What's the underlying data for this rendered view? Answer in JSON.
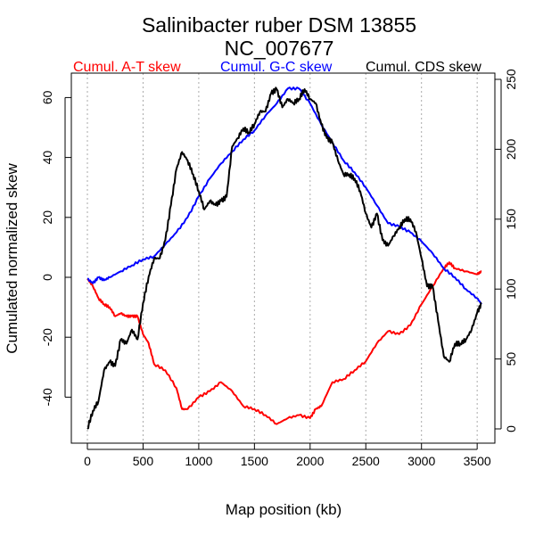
{
  "chart_data": {
    "type": "line",
    "title": "Salinibacter ruber DSM 13855",
    "subtitle": "NC_007677",
    "xlabel": "Map position (kb)",
    "ylabel": "Cumulated normalized skew",
    "xlim": [
      0,
      3600
    ],
    "ylim_left": [
      -50,
      65
    ],
    "ylim_right": [
      0,
      250
    ],
    "x_ticks": [
      0,
      500,
      1000,
      1500,
      2000,
      2500,
      3000,
      3500
    ],
    "y_left_ticks": [
      -40,
      -20,
      0,
      20,
      40,
      60
    ],
    "y_right_ticks": [
      0,
      50,
      100,
      150,
      200,
      250
    ],
    "grid": "vertical dotted at x ticks",
    "legend": [
      {
        "label": "Cumul. A-T skew",
        "color": "#ff0000"
      },
      {
        "label": "Cumul. G-C skew",
        "color": "#0000ff"
      },
      {
        "label": "Cumul. CDS skew",
        "color": "#000000"
      }
    ],
    "series": [
      {
        "name": "Cumul. A-T skew",
        "axis": "left",
        "color": "#ff0000",
        "x": [
          0,
          50,
          100,
          150,
          200,
          250,
          300,
          350,
          400,
          450,
          500,
          550,
          600,
          700,
          800,
          850,
          900,
          1000,
          1100,
          1200,
          1300,
          1400,
          1500,
          1600,
          1700,
          1800,
          1900,
          2000,
          2050,
          2100,
          2200,
          2300,
          2400,
          2500,
          2600,
          2700,
          2800,
          2900,
          3000,
          3100,
          3200,
          3250,
          3300,
          3400,
          3500,
          3540
        ],
        "y": [
          -0.5,
          -3,
          -7,
          -9,
          -10,
          -13,
          -12,
          -13,
          -13,
          -13,
          -19,
          -22,
          -29,
          -31,
          -37,
          -44,
          -44,
          -40,
          -38,
          -35,
          -38,
          -43,
          -44,
          -46,
          -49,
          -47,
          -46,
          -47,
          -44,
          -43,
          -35,
          -34,
          -31,
          -28,
          -22,
          -18,
          -19,
          -16,
          -9,
          -3,
          3,
          5,
          3,
          2,
          1,
          2
        ]
      },
      {
        "name": "Cumul. G-C skew",
        "axis": "left",
        "color": "#0000ff",
        "x": [
          0,
          50,
          100,
          150,
          200,
          300,
          400,
          500,
          600,
          700,
          800,
          900,
          1000,
          1100,
          1200,
          1300,
          1400,
          1500,
          1600,
          1700,
          1800,
          1900,
          2000,
          2100,
          2200,
          2300,
          2400,
          2500,
          2600,
          2700,
          2800,
          2900,
          3000,
          3100,
          3200,
          3300,
          3400,
          3500,
          3540
        ],
        "y": [
          -0.5,
          -2,
          0,
          -1,
          0,
          2,
          4,
          6,
          7,
          11,
          15,
          20,
          27,
          33,
          38,
          42,
          46,
          49,
          54,
          58,
          63,
          63,
          58,
          51,
          45,
          39,
          35,
          30,
          24,
          18,
          17,
          15,
          12,
          8,
          3,
          0,
          -4,
          -7,
          -9
        ]
      },
      {
        "name": "Cumul. CDS skew",
        "axis": "right",
        "color": "#000000",
        "x": [
          0,
          50,
          100,
          150,
          200,
          250,
          300,
          350,
          400,
          450,
          500,
          550,
          600,
          650,
          700,
          750,
          800,
          850,
          900,
          950,
          1000,
          1050,
          1100,
          1150,
          1200,
          1250,
          1300,
          1350,
          1400,
          1450,
          1500,
          1550,
          1600,
          1650,
          1700,
          1750,
          1800,
          1850,
          1900,
          1950,
          2000,
          2050,
          2100,
          2150,
          2200,
          2250,
          2300,
          2350,
          2400,
          2450,
          2500,
          2550,
          2600,
          2650,
          2700,
          2750,
          2800,
          2850,
          2900,
          2950,
          3000,
          3050,
          3100,
          3150,
          3200,
          3250,
          3300,
          3350,
          3400,
          3450,
          3500,
          3540
        ],
        "y": [
          0,
          13,
          20,
          42,
          48,
          45,
          64,
          61,
          71,
          64,
          90,
          109,
          122,
          122,
          135,
          160,
          186,
          198,
          192,
          182,
          170,
          157,
          163,
          160,
          163,
          166,
          202,
          208,
          215,
          212,
          218,
          227,
          227,
          240,
          243,
          230,
          236,
          233,
          236,
          243,
          236,
          233,
          218,
          208,
          205,
          192,
          182,
          182,
          179,
          170,
          154,
          144,
          154,
          135,
          131,
          138,
          144,
          150,
          150,
          141,
          122,
          102,
          102,
          77,
          52,
          48,
          61,
          61,
          64,
          71,
          83,
          90
        ]
      }
    ]
  }
}
